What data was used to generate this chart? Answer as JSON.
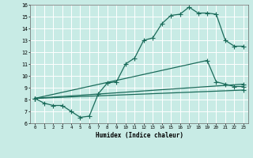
{
  "xlabel": "Humidex (Indice chaleur)",
  "xlim": [
    -0.5,
    23.5
  ],
  "ylim": [
    6,
    16
  ],
  "xticks": [
    0,
    1,
    2,
    3,
    4,
    5,
    6,
    7,
    8,
    9,
    10,
    11,
    12,
    13,
    14,
    15,
    16,
    17,
    18,
    19,
    20,
    21,
    22,
    23
  ],
  "yticks": [
    6,
    7,
    8,
    9,
    10,
    11,
    12,
    13,
    14,
    15,
    16
  ],
  "background_color": "#c8ebe5",
  "grid_color": "#ffffff",
  "line_color": "#1a6b5a",
  "line1_x": [
    0,
    1,
    2,
    3,
    4,
    5,
    6,
    7,
    8,
    9,
    10,
    11,
    12,
    13,
    14,
    15,
    16,
    17,
    18,
    19,
    20,
    21,
    22,
    23
  ],
  "line1_y": [
    8.1,
    7.7,
    7.5,
    7.5,
    7.0,
    6.5,
    6.6,
    8.5,
    9.4,
    9.5,
    11.0,
    11.5,
    13.0,
    13.2,
    14.4,
    15.1,
    15.2,
    15.8,
    15.3,
    15.3,
    15.2,
    13.0,
    12.5,
    12.5
  ],
  "line2_x": [
    0,
    23
  ],
  "line2_y": [
    8.1,
    9.3
  ],
  "line3_x": [
    0,
    23
  ],
  "line3_y": [
    8.1,
    8.8
  ],
  "line4_x": [
    0,
    19,
    20,
    21,
    22,
    23
  ],
  "line4_y": [
    8.1,
    11.3,
    9.5,
    9.3,
    9.1,
    9.1
  ]
}
